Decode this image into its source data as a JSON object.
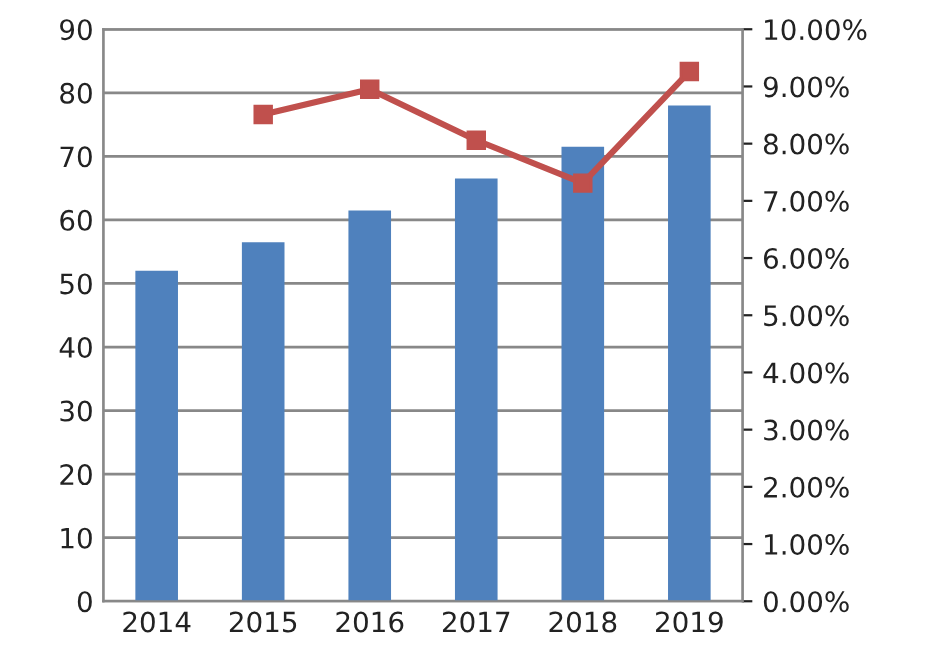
{
  "chart_data": {
    "type": "bar",
    "categories": [
      "2014",
      "2015",
      "2016",
      "2017",
      "2018",
      "2019"
    ],
    "series": [
      {
        "color": "#4f81bd",
        "values": [
          52,
          56.5,
          61.5,
          66.5,
          71.5,
          78
        ]
      },
      {
        "type": "line",
        "axis": "y2",
        "color": "#c0504d",
        "marker": "square",
        "values": [
          null,
          8.51,
          8.95,
          8.06,
          7.31,
          9.26
        ]
      }
    ],
    "ylim": [
      0,
      90
    ],
    "yticks": [
      0,
      10,
      20,
      30,
      40,
      50,
      60,
      70,
      80,
      90
    ],
    "y2lim": [
      0,
      10
    ],
    "y2ticks": [
      {
        "value": 0,
        "label": "0.00%"
      },
      {
        "value": 1,
        "label": "1.00%"
      },
      {
        "value": 2,
        "label": "2.00%"
      },
      {
        "value": 3,
        "label": "3.00%"
      },
      {
        "value": 4,
        "label": "4.00%"
      },
      {
        "value": 5,
        "label": "5.00%"
      },
      {
        "value": 6,
        "label": "6.00%"
      },
      {
        "value": 7,
        "label": "7.00%"
      },
      {
        "value": 8,
        "label": "8.00%"
      },
      {
        "value": 9,
        "label": "9.00%"
      },
      {
        "value": 10,
        "label": "10.00%"
      }
    ],
    "grid": "y"
  }
}
